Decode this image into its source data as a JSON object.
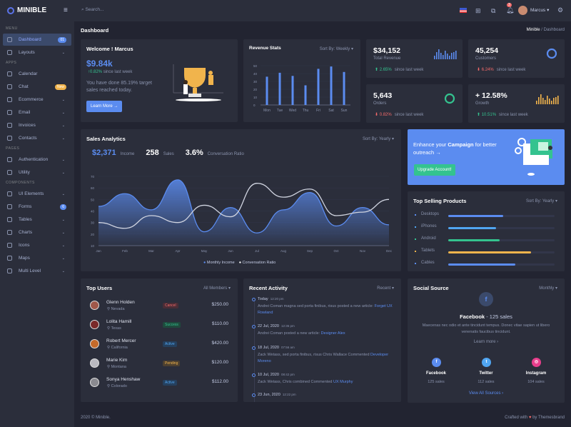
{
  "brand": {
    "name": "MINIBLE"
  },
  "topbar": {
    "search_placeholder": "Search...",
    "notification_count": "3",
    "user_name": "Marcus"
  },
  "page": {
    "title": "Dashboard",
    "breadcrumb": [
      "Minible",
      "Dashboard"
    ]
  },
  "sidebar": {
    "sections": [
      {
        "title": "MENU",
        "items": [
          {
            "label": "Dashboard",
            "badge": "01",
            "active": true
          },
          {
            "label": "Layouts",
            "chevron": true
          }
        ]
      },
      {
        "title": "APPS",
        "items": [
          {
            "label": "Calendar"
          },
          {
            "label": "Chat",
            "badge": "New"
          },
          {
            "label": "Ecommerce",
            "chevron": true
          },
          {
            "label": "Email",
            "chevron": true
          },
          {
            "label": "Invoices",
            "chevron": true
          },
          {
            "label": "Contacts",
            "chevron": true
          }
        ]
      },
      {
        "title": "PAGES",
        "items": [
          {
            "label": "Authentication",
            "chevron": true
          },
          {
            "label": "Utility",
            "chevron": true
          }
        ]
      },
      {
        "title": "COMPONENTS",
        "items": [
          {
            "label": "UI Elements",
            "chevron": true
          },
          {
            "label": "Forms",
            "badge": "6"
          },
          {
            "label": "Tables",
            "chevron": true
          },
          {
            "label": "Charts",
            "chevron": true
          },
          {
            "label": "Icons",
            "chevron": true
          },
          {
            "label": "Maps",
            "chevron": true
          },
          {
            "label": "Multi Level",
            "chevron": true
          }
        ]
      }
    ]
  },
  "welcome": {
    "title": "Welcome ! Marcus",
    "amount": "$9.84k",
    "change": "0.82%",
    "change_suffix": "since last week",
    "text": "You have done 85.19% target sales reached today.",
    "button": "Learn More →"
  },
  "revenue_stats": {
    "title": "Revenue Stats",
    "sort": "Sort By: Weekly",
    "chart_data": {
      "type": "bar",
      "categories": [
        "Mon",
        "Tue",
        "Wed",
        "Thu",
        "Fri",
        "Sat",
        "Sun"
      ],
      "values": [
        36,
        41,
        37,
        25,
        46,
        49,
        42
      ],
      "ylim": [
        0,
        50
      ],
      "yticks": [
        "0",
        "10",
        "20",
        "30",
        "40",
        "50"
      ]
    }
  },
  "stats": [
    {
      "value": "$34,152",
      "label": "Total Revenue",
      "change": "2.65%",
      "dir": "up",
      "suffix": "since last week",
      "mini": "bars",
      "color": "#5b8cf0"
    },
    {
      "value": "45,254",
      "label": "Customers",
      "change": "6.24%",
      "dir": "down",
      "suffix": "since last week",
      "mini": "ring",
      "color": "#5b8cf0"
    },
    {
      "value": "5,643",
      "label": "Orders",
      "change": "0.82%",
      "dir": "down",
      "suffix": "since last week",
      "mini": "ring",
      "color": "#34c38f"
    },
    {
      "value": "+ 12.58%",
      "label": "Growth",
      "change": "10.51%",
      "dir": "up",
      "suffix": "since last week",
      "mini": "bars",
      "color": "#f1b44c"
    }
  ],
  "sales_analytics": {
    "title": "Sales Analytics",
    "sort": "Sort By: Yearly",
    "summary": [
      {
        "value": "$2,371",
        "label": "Income"
      },
      {
        "value": "258",
        "label": "Sales"
      },
      {
        "value": "3.6%",
        "label": "Conversation Ratio"
      }
    ],
    "chart_data": {
      "type": "area",
      "categories": [
        "Jan",
        "Feb",
        "Mar",
        "Apr",
        "May",
        "Jun",
        "Jul",
        "Aug",
        "Sep",
        "Oct",
        "Nov",
        "Dec"
      ],
      "ylim": [
        10,
        70
      ],
      "yticks": [
        "10",
        "20",
        "30",
        "40",
        "50",
        "60",
        "70"
      ],
      "series": [
        {
          "name": "Monthly Income",
          "values": [
            44,
            55,
            41,
            67,
            22,
            43,
            21,
            41,
            56,
            27,
            43,
            28
          ],
          "color": "#5b8cf0"
        },
        {
          "name": "Conversation Ratio",
          "values": [
            30,
            25,
            36,
            30,
            45,
            35,
            64,
            52,
            59,
            36,
            39,
            50
          ],
          "color": "#d0d4e0"
        }
      ],
      "legend": "bottom"
    }
  },
  "campaign": {
    "text_pre": "Enhance your ",
    "text_bold": "Campaign",
    "text_post": " for better outreach →",
    "button": "Upgrade Account!"
  },
  "top_selling": {
    "title": "Top Selling Products",
    "sort": "Sort By: Yearly",
    "items": [
      {
        "label": "Desktops",
        "percent": 52,
        "color": "#5b8cf0"
      },
      {
        "label": "iPhones",
        "percent": 45,
        "color": "#50a5f1"
      },
      {
        "label": "Android",
        "percent": 48,
        "color": "#34c38f"
      },
      {
        "label": "Tablets",
        "percent": 78,
        "color": "#f1b44c"
      },
      {
        "label": "Cables",
        "percent": 63,
        "color": "#5b8cf0"
      }
    ]
  },
  "top_users": {
    "title": "Top Users",
    "filter": "All Members",
    "users": [
      {
        "name": "Glenn Holden",
        "location": "Nevada",
        "status": "Cancel",
        "amount": "$250.00"
      },
      {
        "name": "Lolita Hamill",
        "location": "Texas",
        "status": "Success",
        "amount": "$110.00"
      },
      {
        "name": "Robert Mercer",
        "location": "California",
        "status": "Active",
        "amount": "$420.00"
      },
      {
        "name": "Marie Kim",
        "location": "Montana",
        "status": "Pending",
        "amount": "$120.00"
      },
      {
        "name": "Sonya Henshaw",
        "location": "Colorado",
        "status": "Active",
        "amount": "$112.00"
      }
    ]
  },
  "recent_activity": {
    "title": "Recent Activity",
    "filter": "Recent",
    "items": [
      {
        "date": "Today",
        "time": "12:20 pm",
        "text": "Andrei Coman magna sed porta finibus, risus posted a new article:",
        "link": "Forget UX Rowland"
      },
      {
        "date": "22 Jul, 2020",
        "time": "12:36 pm",
        "text": "Andrei Coman posted a new article:",
        "link": "Designer Alex"
      },
      {
        "date": "18 Jul, 2020",
        "time": "07:56 am",
        "text": "Zack Wetass, sed porta finibus, risus Chris Wallace Commented",
        "link": "Developer Moreno"
      },
      {
        "date": "10 Jul, 2020",
        "time": "08:42 pm",
        "text": "Zack Wetass, Chris combined Commented",
        "link": "UX Murphy"
      },
      {
        "date": "23 Jun, 2020",
        "time": "12:22 pm",
        "text": "",
        "link": ""
      }
    ]
  },
  "social": {
    "title": "Social Source",
    "filter": "Monthly",
    "headline": "Facebook",
    "headline_sales": "- 125 sales",
    "text": "Maecenas nec odio et ante tincidunt tempus. Donec vitae sapien ut libero venenatis faucibus tincidunt.",
    "learn": "Learn more ›",
    "sources": [
      {
        "name": "Facebook",
        "sales": "125 sales",
        "color": "#5b8cf0"
      },
      {
        "name": "Twitter",
        "sales": "112 sales",
        "color": "#50a5f1"
      },
      {
        "name": "Instagram",
        "sales": "104 sales",
        "color": "#e83e8c"
      }
    ],
    "view_all": "View All Sources ›"
  },
  "footer": {
    "left": "2020 © Minible.",
    "right_pre": "Crafted with",
    "right_post": "by Themesbrand"
  }
}
